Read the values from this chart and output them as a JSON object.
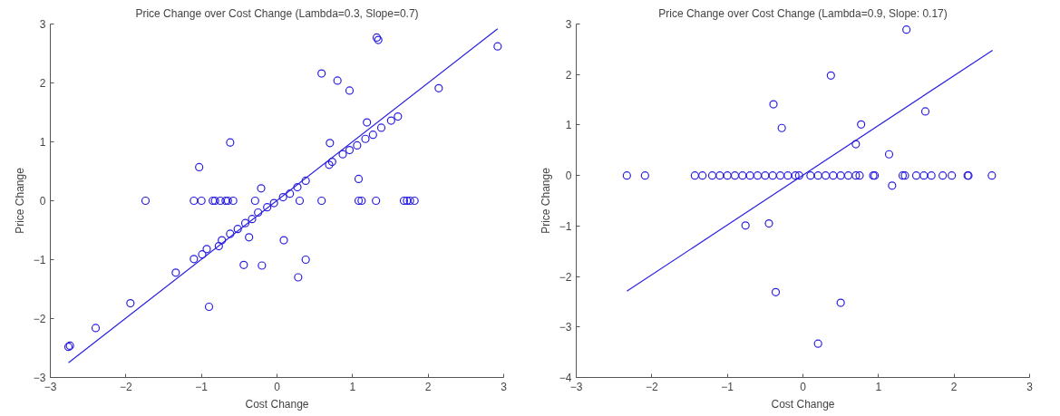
{
  "chart_data": [
    {
      "type": "scatter",
      "title": "Price Change over Cost Change (Lambda=0.3, Slope=0.7)",
      "xlabel": "Cost Change",
      "ylabel": "Price Change",
      "xlim": [
        -3,
        3
      ],
      "ylim": [
        -3,
        3
      ],
      "xticks": [
        -3,
        -2,
        -1,
        0,
        1,
        2,
        3
      ],
      "yticks": [
        -3,
        -2,
        -1,
        0,
        1,
        2,
        3
      ],
      "grid": false,
      "series": [
        {
          "marker": "circle",
          "color": "#2a1fe0",
          "x": [
            -2.76,
            -2.74,
            -2.4,
            -1.94,
            -1.74,
            -1.34,
            -1.1,
            -1.03,
            -1.1,
            -1.0,
            -0.99,
            -0.93,
            -0.9,
            -0.85,
            -0.82,
            -0.75,
            -0.68,
            -0.65,
            -0.58,
            -0.62,
            -0.29,
            -0.21,
            -0.44,
            -0.2,
            -0.37,
            -0.77,
            -0.73,
            -0.62,
            -0.52,
            -0.42,
            -0.33,
            -0.25,
            -0.13,
            -0.04,
            0.08,
            0.17,
            0.27,
            0.38,
            0.3,
            0.59,
            0.09,
            0.38,
            0.28,
            0.59,
            0.8,
            0.96,
            1.32,
            1.34,
            2.92,
            2.14,
            0.7,
            0.69,
            0.73,
            0.87,
            0.96,
            1.06,
            1.19,
            1.17,
            1.27,
            1.38,
            1.51,
            1.6,
            1.08,
            1.08,
            1.12,
            1.31,
            1.68,
            1.72,
            1.76,
            1.82
          ],
          "values": [
            -2.48,
            -2.46,
            -2.16,
            -1.74,
            0,
            -1.22,
            -0.99,
            0.57,
            0,
            0,
            -0.91,
            -0.82,
            -1.8,
            0,
            0,
            0,
            0,
            0,
            0,
            0.99,
            0,
            0.21,
            -1.09,
            -1.1,
            -0.62,
            -0.77,
            -0.67,
            -0.56,
            -0.48,
            -0.38,
            -0.31,
            -0.2,
            -0.11,
            -0.04,
            0.06,
            0.12,
            0.23,
            0.34,
            0,
            0,
            -0.67,
            -1.0,
            -1.3,
            2.16,
            2.04,
            1.87,
            2.77,
            2.73,
            2.62,
            1.91,
            0.98,
            0.61,
            0.66,
            0.79,
            0.86,
            0.94,
            1.33,
            1.05,
            1.12,
            1.24,
            1.36,
            1.43,
            0.37,
            0,
            0,
            0,
            0,
            0,
            0,
            0
          ]
        },
        {
          "type": "line",
          "color": "#2a1fe0",
          "x": [
            -2.76,
            2.92
          ],
          "values": [
            -2.75,
            2.92
          ]
        }
      ]
    },
    {
      "type": "scatter",
      "title": "Price Change over Cost Change (Lambda=0.9, Slope: 0.17)",
      "xlabel": "Cost Change",
      "ylabel": "Price Change",
      "xlim": [
        -3,
        3
      ],
      "ylim": [
        -4,
        3
      ],
      "xticks": [
        -3,
        -2,
        -1,
        0,
        1,
        2,
        3
      ],
      "yticks": [
        -4,
        -3,
        -2,
        -1,
        0,
        1,
        2,
        3
      ],
      "grid": false,
      "series": [
        {
          "marker": "circle",
          "color": "#2a1fe0",
          "x": [
            -2.33,
            -2.09,
            -1.43,
            -1.33,
            -1.2,
            -1.1,
            -1.0,
            -0.9,
            -0.8,
            -0.7,
            -0.6,
            -0.5,
            -0.4,
            -0.3,
            -0.2,
            -0.1,
            -0.05,
            -0.39,
            -0.28,
            -0.76,
            -0.45,
            -0.36,
            0.37,
            1.37,
            0.77,
            0.7,
            1.62,
            1.14,
            1.18,
            0.5,
            0.2,
            0.1,
            0.2,
            0.3,
            0.4,
            0.5,
            0.6,
            0.7,
            0.75,
            0.93,
            0.95,
            1.32,
            1.35,
            1.5,
            1.6,
            1.7,
            1.85,
            1.97,
            2.18,
            2.19,
            2.5
          ],
          "values": [
            0,
            0,
            0,
            0,
            0,
            0,
            0,
            0,
            0,
            0,
            0,
            0,
            0,
            0,
            0,
            0,
            0,
            1.41,
            0.94,
            -0.99,
            -0.95,
            -2.31,
            1.98,
            2.89,
            1.01,
            0.62,
            1.27,
            0.42,
            -0.2,
            -2.52,
            -3.33,
            0,
            0,
            0,
            0,
            0,
            0,
            0,
            0,
            0,
            0,
            0,
            0,
            0,
            0,
            0,
            0,
            0,
            0,
            0,
            0
          ]
        },
        {
          "type": "line",
          "color": "#2a1fe0",
          "x": [
            -2.33,
            2.51
          ],
          "values": [
            -2.29,
            2.48
          ]
        }
      ]
    }
  ]
}
